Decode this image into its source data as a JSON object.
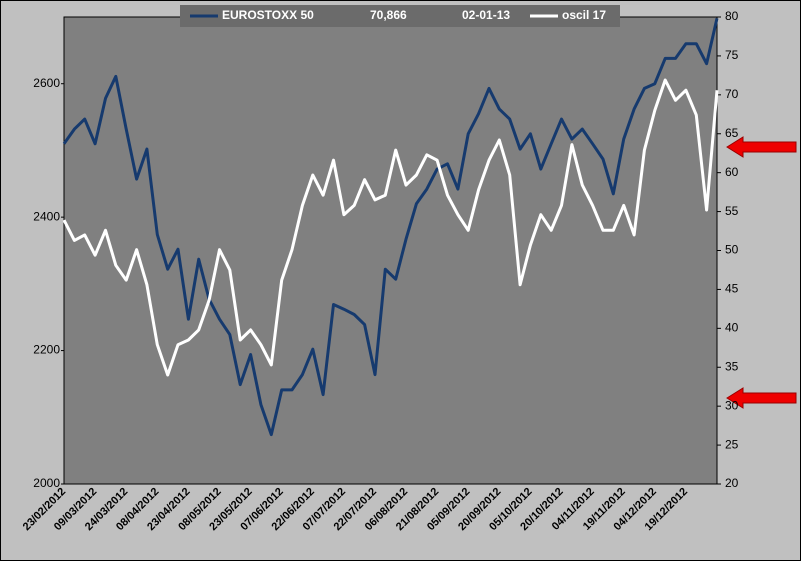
{
  "chart_data": {
    "type": "line",
    "legend_texts": [
      "70,866",
      "02-01-13"
    ],
    "categories": [
      "23/02/2012",
      null,
      null,
      "09/03/2012",
      null,
      null,
      "24/03/2012",
      null,
      null,
      "08/04/2012",
      null,
      null,
      "23/04/2012",
      null,
      null,
      "08/05/2012",
      null,
      null,
      "23/05/2012",
      null,
      null,
      "07/06/2012",
      null,
      null,
      "22/06/2012",
      null,
      null,
      "07/07/2012",
      null,
      null,
      "22/07/2012",
      null,
      null,
      "06/08/2012",
      null,
      null,
      "21/08/2012",
      null,
      null,
      "05/09/2012",
      null,
      null,
      "20/09/2012",
      null,
      null,
      "05/10/2012",
      null,
      null,
      "20/10/2012",
      null,
      null,
      "04/11/2012",
      null,
      null,
      "19/11/2012",
      null,
      null,
      "04/12/2012",
      null,
      null,
      "19/12/2012",
      null,
      null,
      null
    ],
    "series": [
      {
        "name": "EUROSTOXX 50",
        "color": "#163a6e",
        "axis": "y",
        "values": [
          2510,
          2532,
          2547,
          2510,
          2578,
          2611,
          2532,
          2457,
          2502,
          2374,
          2322,
          2352,
          2247,
          2337,
          2277,
          2247,
          2224,
          2149,
          2194,
          2119,
          2074,
          2141,
          2141,
          2164,
          2202,
          2134,
          2269,
          2262,
          2254,
          2239,
          2164,
          2322,
          2307,
          2367,
          2420,
          2442,
          2472,
          2480,
          2442,
          2525,
          2555,
          2593,
          2562,
          2547,
          2502,
          2525,
          2472,
          2510,
          2547,
          2517,
          2532,
          2510,
          2487,
          2435,
          2517,
          2562,
          2593,
          2600,
          2638,
          2638,
          2660,
          2660,
          2630,
          2698
        ]
      },
      {
        "name": "oscil 17",
        "color": "#ffffff",
        "axis": "y2",
        "values": [
          53.9,
          51.3,
          52.0,
          49.4,
          52.6,
          48.1,
          46.2,
          50.1,
          45.6,
          37.9,
          34.0,
          37.9,
          38.5,
          39.8,
          43.6,
          50.1,
          47.5,
          38.5,
          39.8,
          37.9,
          35.3,
          46.2,
          50.1,
          55.8,
          59.7,
          57.1,
          61.6,
          54.6,
          55.8,
          59.1,
          56.5,
          57.1,
          62.9,
          58.4,
          59.7,
          62.3,
          61.6,
          57.1,
          54.6,
          52.6,
          57.8,
          61.6,
          64.2,
          59.7,
          45.6,
          50.7,
          54.6,
          52.6,
          55.8,
          63.6,
          58.4,
          55.8,
          52.6,
          52.6,
          55.8,
          52.0,
          62.9,
          68.0,
          71.9,
          69.3,
          70.6,
          67.4,
          55.2,
          70.6
        ]
      }
    ],
    "ylim": [
      2000,
      2700
    ],
    "yticks": [
      2000,
      2200,
      2400,
      2600
    ],
    "y2lim": [
      20,
      80
    ],
    "y2ticks": [
      20,
      25,
      30,
      35,
      40,
      45,
      50,
      55,
      60,
      65,
      70,
      75,
      80
    ],
    "grid": false
  }
}
